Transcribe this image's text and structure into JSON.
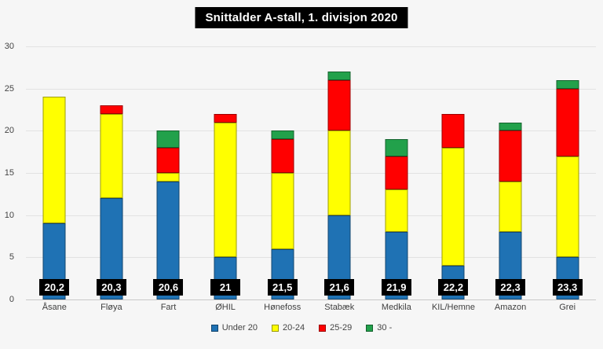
{
  "title": "Snittalder A-stall, 1. divisjon 2020",
  "chart_data": {
    "type": "bar",
    "stacked": true,
    "title": "Snittalder A-stall, 1. divisjon 2020",
    "categories": [
      "Åsane",
      "Fløya",
      "Fart",
      "ØHIL",
      "Hønefoss",
      "Stabæk",
      "Medkila",
      "KIL/Hemne",
      "Amazon",
      "Grei"
    ],
    "series": [
      {
        "name": "Under 20",
        "color": "#1f72b4",
        "values": [
          9,
          12,
          14,
          5,
          6,
          10,
          8,
          4,
          8,
          5
        ]
      },
      {
        "name": "20-24",
        "color": "#ffff00",
        "values": [
          15,
          10,
          1,
          16,
          9,
          10,
          5,
          14,
          6,
          12
        ]
      },
      {
        "name": "25-29",
        "color": "#ff0000",
        "values": [
          0,
          1,
          3,
          1,
          4,
          6,
          4,
          4,
          6,
          8
        ]
      },
      {
        "name": "30 -",
        "color": "#22a14b",
        "values": [
          0,
          0,
          2,
          0,
          1,
          1,
          2,
          0,
          1,
          1
        ]
      }
    ],
    "totals": [
      24,
      23,
      20,
      22,
      20,
      27,
      19,
      22,
      21,
      26
    ],
    "bar_labels": [
      "20,2",
      "20,3",
      "20,6",
      "21",
      "21,5",
      "21,6",
      "21,9",
      "22,2",
      "22,3",
      "23,3"
    ],
    "y_ticks": [
      0,
      5,
      10,
      15,
      20,
      25,
      30
    ],
    "ylim": [
      0,
      30
    ],
    "grid": true,
    "legend_position": "bottom"
  },
  "legend": {
    "items": [
      {
        "label": "Under 20",
        "color": "#1f72b4"
      },
      {
        "label": "20-24",
        "color": "#ffff00"
      },
      {
        "label": "25-29",
        "color": "#ff0000"
      },
      {
        "label": "30 -",
        "color": "#22a14b"
      }
    ]
  },
  "colors": {
    "background": "#f6f6f6",
    "gridline": "#e2e2e2",
    "axis_line": "#c9c9c9",
    "title_bg": "#000000",
    "title_text": "#ffffff",
    "badge_bg": "#000000",
    "badge_text": "#ffffff"
  }
}
